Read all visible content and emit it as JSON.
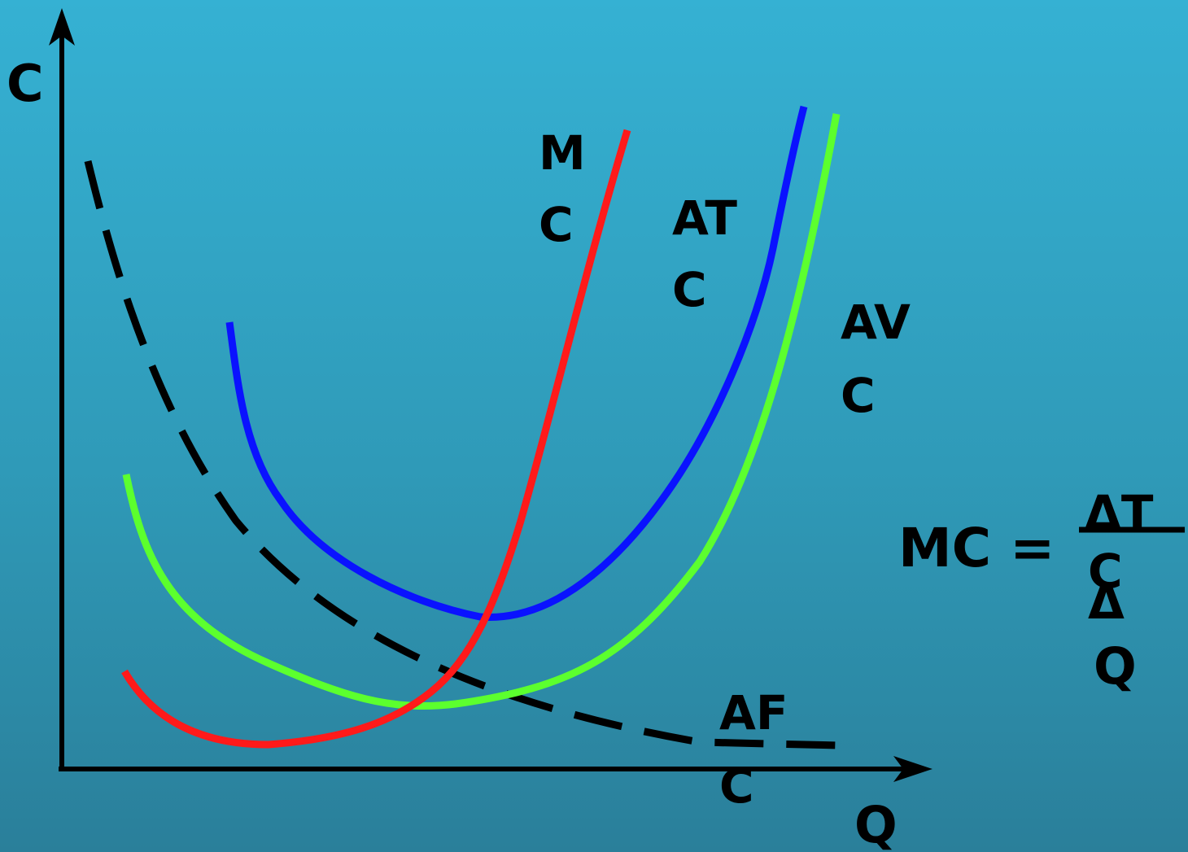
{
  "axes": {
    "y_label": "C",
    "x_label": "Q"
  },
  "curves": [
    {
      "id": "mc",
      "label_lines": [
        "M",
        "C"
      ],
      "color": "#ff1a1a",
      "style": "solid"
    },
    {
      "id": "atc",
      "label_lines": [
        "AT",
        "C"
      ],
      "color": "#0a12ff",
      "style": "solid"
    },
    {
      "id": "avc",
      "label_lines": [
        "AV",
        "C"
      ],
      "color": "#5cff2e",
      "style": "solid"
    },
    {
      "id": "afc",
      "label_lines": [
        "AF",
        "C"
      ],
      "color": "#000000",
      "style": "dashed"
    }
  ],
  "formula": {
    "left": "MC =",
    "numerator": "ΔT",
    "numerator_tail": "C",
    "denominator": "Δ",
    "denominator_tail": "Q"
  }
}
